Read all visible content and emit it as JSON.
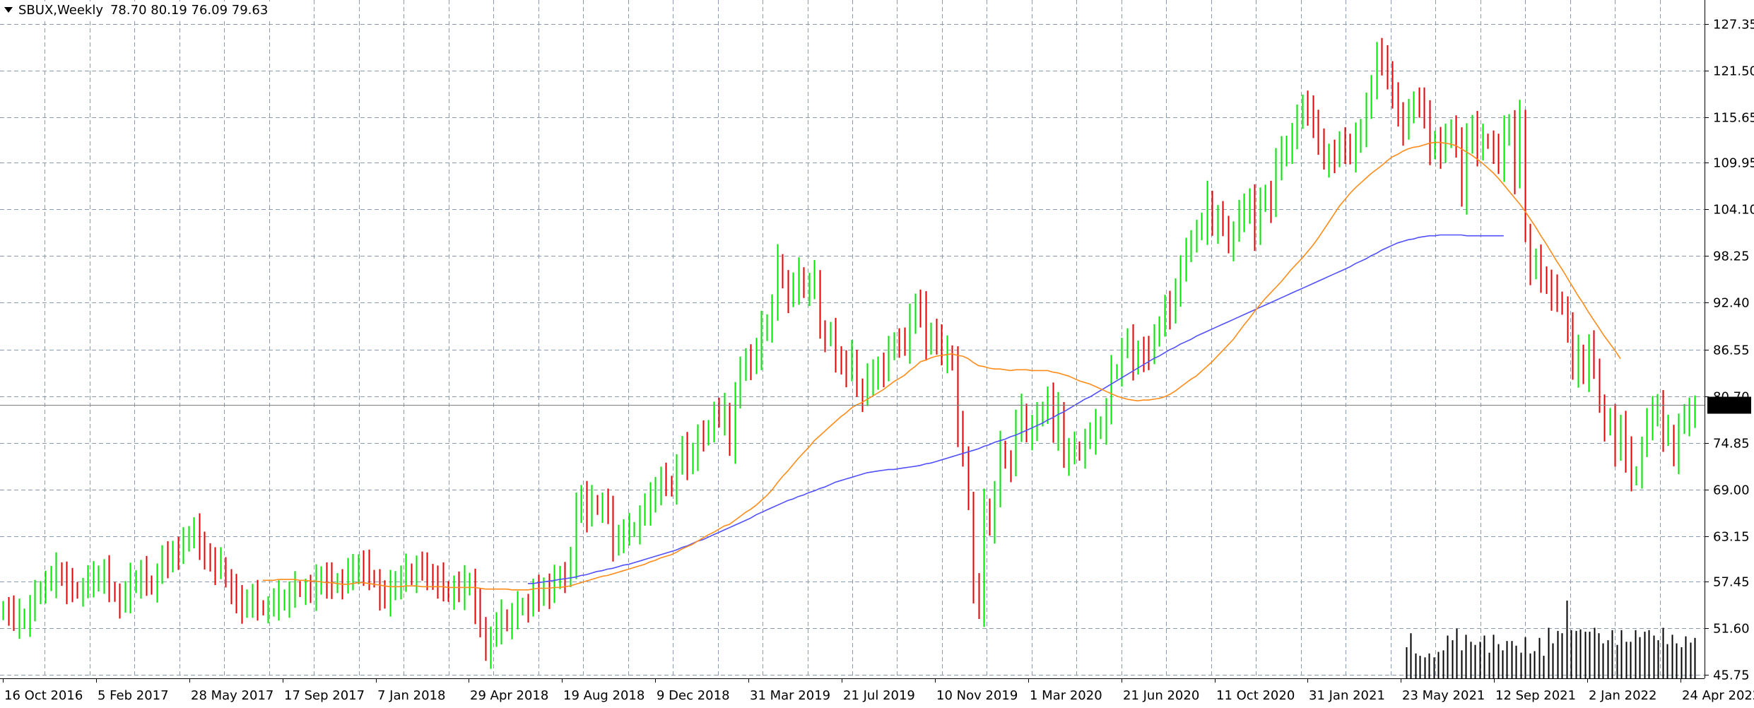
{
  "header": {
    "symbol": "SBUX,Weekly",
    "ohlc": "78.70 80.19 76.09 79.63"
  },
  "chart_data": {
    "type": "candlestick",
    "symbol": "SBUX",
    "timeframe": "Weekly",
    "ohlc_last": {
      "open": 78.7,
      "high": 80.19,
      "low": 76.09,
      "close": 79.63
    },
    "current_price_label": "79.63",
    "ylim": [
      45.75,
      127.35
    ],
    "y_ticks": [
      "127.35",
      "121.50",
      "115.65",
      "109.95",
      "104.10",
      "98.25",
      "92.40",
      "86.55",
      "80.70",
      "74.85",
      "69.00",
      "63.15",
      "57.45",
      "51.60",
      "45.75"
    ],
    "x_ticks": [
      "16 Oct 2016",
      "5 Feb 2017",
      "28 May 2017",
      "17 Sep 2017",
      "7 Jan 2018",
      "29 Apr 2018",
      "19 Aug 2018",
      "9 Dec 2018",
      "31 Mar 2019",
      "21 Jul 2019",
      "10 Nov 2019",
      "1 Mar 2020",
      "21 Jun 2020",
      "11 Oct 2020",
      "31 Jan 2021",
      "23 May 2021",
      "12 Sep 2021",
      "2 Jan 2022",
      "24 Apr 2022"
    ],
    "grid": true,
    "colors": {
      "up_bar": "#00e400",
      "down_bar": "#e40000",
      "fast_ma": "#ff8c1a",
      "slow_ma": "#5050ff",
      "grid": "#8a9ab0",
      "volume": "#000000"
    },
    "close_series": [
      54.1,
      53.8,
      52.4,
      52.9,
      52.9,
      54.1,
      55.5,
      56.6,
      57.4,
      57.5,
      58.7,
      58.3,
      57.0,
      56.5,
      56.2,
      56.5,
      57.6,
      57.6,
      58.3,
      58.6,
      56.5,
      55.8,
      54.7,
      55.6,
      57.4,
      57.7,
      58.5,
      57.3,
      56.7,
      58.3,
      60.1,
      60.0,
      61.4,
      61.3,
      62.1,
      63.5,
      64.1,
      61.3,
      61.1,
      60.1,
      59.4,
      59.6,
      57.6,
      56.5,
      54.6,
      54.3,
      55.3,
      55.5,
      54.2,
      54.1,
      54.2,
      54.7,
      55.2,
      55.3,
      55.8,
      56.6,
      56.4,
      56.4,
      55.9,
      57.2,
      58.2,
      57.7,
      56.9,
      57.6,
      57.1,
      58.5,
      58.5,
      59.7,
      59.3,
      58.0,
      57.6,
      55.7,
      55.2,
      56.5,
      57.6,
      57.8,
      58.8,
      57.9,
      59.3,
      58.7,
      58.5,
      57.8,
      57.7,
      56.6,
      55.8,
      56.8,
      56.0,
      57.1,
      57.4,
      54.5,
      52.1,
      48.4,
      50.4,
      51.7,
      52.8,
      52.6,
      53.1,
      54.1,
      54.5,
      54.2,
      55.9,
      55.8,
      56.8,
      56.4,
      57.4,
      58.5,
      57.9,
      59.9,
      66.2,
      68.4,
      66.0,
      67.4,
      66.7,
      67.2,
      65.8,
      62.1,
      63.4,
      63.6,
      63.9,
      64.0,
      65.6,
      66.6,
      67.5,
      69.4,
      70.2,
      69.8,
      69.0,
      72.0,
      73.8,
      72.3,
      73.7,
      75.5,
      75.4,
      76.8,
      78.6,
      77.9,
      78.7,
      74.6,
      80.8,
      83.5,
      85.8,
      84.6,
      86.1,
      89.0,
      89.8,
      91.8,
      97.6,
      95.1,
      93.0,
      94.3,
      95.7,
      94.4,
      94.5,
      95.6,
      88.8,
      88.1,
      88.1,
      85.8,
      84.8,
      84.2,
      85.6,
      81.5,
      80.6,
      82.9,
      82.9,
      84.5,
      84.2,
      86.1,
      87.8,
      87.4,
      86.9,
      89.9,
      92.4,
      91.7,
      86.8,
      89.0,
      87.8,
      85.7,
      85.9,
      85.3,
      76.7,
      73.5,
      67.3,
      56.6,
      53.9,
      66.7,
      64.6,
      68.4,
      74.2,
      72.5,
      71.8,
      77.1,
      78.6,
      76.3,
      76.7,
      77.8,
      79.1,
      80.5,
      76.0,
      78.8,
      73.1,
      73.8,
      74.1,
      73.5,
      75.2,
      75.5,
      76.7,
      77.0,
      78.8,
      83.7,
      83.8,
      86.6,
      87.3,
      84.8,
      86.5,
      86.1,
      85.6,
      88.8,
      89.3,
      91.5,
      91.2,
      94.3,
      96.7,
      98.4,
      100.6,
      101.4,
      101.8,
      105.3,
      102.2,
      103.0,
      102.4,
      99.5,
      101.2,
      103.4,
      103.7,
      105.6,
      101.3,
      104.7,
      106.3,
      104.3,
      109.9,
      110.9,
      112.2,
      113.3,
      115.1,
      117.6,
      116.5,
      114.2,
      113.1,
      110.5,
      110.7,
      110.3,
      113.0,
      111.7,
      110.9,
      112.6,
      114.3,
      117.1,
      118.8,
      124.2,
      122.8,
      120.3,
      118.9,
      115.9,
      114.5,
      115.8,
      118.0,
      117.5,
      115.4,
      111.8,
      112.8,
      111.6,
      112.7,
      114.5,
      112.5,
      105.6,
      112.5,
      114.8,
      111.9,
      112.7,
      112.6,
      111.7,
      109.7,
      113.5,
      114.9,
      108.4,
      115.7,
      100.9,
      96.5,
      97.3,
      95.8,
      94.9,
      93.8,
      92.9,
      91.8,
      89.3,
      83.9,
      86.0,
      83.6,
      86.8,
      84.5,
      79.5,
      76.9,
      77.3,
      74.0,
      77.2,
      73.5,
      70.4,
      71.0,
      74.2,
      77.3,
      78.3,
      79.8,
      76.1,
      76.2,
      72.8,
      77.1,
      77.8,
      78.1,
      79.63
    ],
    "fast_ma_series": [
      null,
      null,
      null,
      null,
      null,
      null,
      null,
      null,
      null,
      null,
      null,
      null,
      null,
      null,
      null,
      null,
      null,
      null,
      null,
      null,
      null,
      null,
      null,
      null,
      null,
      null,
      null,
      null,
      null,
      null,
      null,
      null,
      null,
      null,
      null,
      null,
      null,
      null,
      null,
      null,
      null,
      null,
      null,
      null,
      null,
      null,
      null,
      null,
      null,
      57.6,
      57.6,
      57.6,
      57.7,
      57.7,
      57.7,
      57.7,
      57.6,
      57.6,
      57.5,
      57.5,
      57.4,
      57.3,
      57.3,
      57.2,
      57.1,
      57.1,
      57.2,
      57.3,
      57.3,
      57.2,
      57.1,
      57.0,
      56.9,
      56.8,
      56.8,
      56.8,
      56.9,
      56.9,
      56.9,
      56.8,
      56.8,
      56.8,
      56.8,
      56.8,
      56.7,
      56.7,
      56.7,
      56.7,
      56.7,
      56.7,
      56.6,
      56.5,
      56.5,
      56.5,
      56.5,
      56.5,
      56.4,
      56.4,
      56.4,
      56.4,
      56.5,
      56.6,
      56.6,
      56.6,
      56.7,
      56.7,
      56.8,
      56.9,
      57.1,
      57.3,
      57.5,
      57.7,
      57.9,
      58.1,
      58.2,
      58.4,
      58.6,
      58.8,
      59.0,
      59.2,
      59.4,
      59.6,
      59.9,
      60.1,
      60.4,
      60.6,
      60.8,
      61.1,
      61.5,
      61.8,
      62.1,
      62.5,
      62.9,
      63.3,
      63.6,
      64.0,
      64.4,
      64.6,
      65.1,
      65.6,
      66.1,
      66.5,
      67.0,
      67.6,
      68.2,
      68.9,
      69.8,
      70.6,
      71.3,
      72.1,
      72.9,
      73.6,
      74.3,
      75.1,
      75.7,
      76.3,
      76.9,
      77.5,
      78.1,
      78.6,
      79.2,
      79.6,
      79.9,
      80.3,
      80.7,
      81.1,
      81.5,
      82.0,
      82.5,
      82.9,
      83.3,
      83.9,
      84.4,
      85.0,
      85.2,
      85.5,
      85.7,
      85.8,
      85.9,
      86.0,
      85.8,
      85.7,
      85.4,
      84.9,
      84.5,
      84.4,
      84.2,
      84.1,
      84.1,
      84.0,
      83.9,
      84.0,
      84.0,
      84.0,
      83.9,
      83.9,
      83.9,
      83.9,
      83.7,
      83.6,
      83.4,
      83.2,
      82.9,
      82.6,
      82.4,
      82.2,
      81.9,
      81.6,
      81.3,
      81.0,
      80.7,
      80.5,
      80.3,
      80.2,
      80.1,
      80.2,
      80.2,
      80.3,
      80.4,
      80.6,
      80.9,
      81.3,
      81.8,
      82.3,
      82.8,
      83.2,
      83.8,
      84.4,
      85.0,
      85.7,
      86.4,
      87.1,
      87.8,
      88.7,
      89.6,
      90.4,
      91.3,
      92.1,
      92.9,
      93.6,
      94.3,
      95.0,
      95.8,
      96.6,
      97.3,
      98.0,
      98.8,
      99.6,
      100.5,
      101.5,
      102.5,
      103.5,
      104.5,
      105.3,
      106.1,
      106.8,
      107.4,
      108.0,
      108.6,
      109.1,
      109.6,
      110.2,
      110.7,
      111.0,
      111.4,
      111.7,
      111.9,
      112.0,
      112.2,
      112.4,
      112.5,
      112.5,
      112.4,
      112.3,
      112.1,
      111.7,
      111.3,
      110.9,
      110.4,
      109.9,
      109.3,
      108.7,
      108.0,
      107.2,
      106.4,
      105.6,
      104.8,
      103.9,
      102.9,
      101.9,
      100.8,
      99.8,
      98.7,
      97.6,
      96.6,
      95.5,
      94.4,
      93.3,
      92.3,
      91.2,
      90.2,
      89.2,
      88.2,
      87.3,
      86.4,
      85.4
    ],
    "slow_ma_series": [
      null,
      null,
      null,
      null,
      null,
      null,
      null,
      null,
      null,
      null,
      null,
      null,
      null,
      null,
      null,
      null,
      null,
      null,
      null,
      null,
      null,
      null,
      null,
      null,
      null,
      null,
      null,
      null,
      null,
      null,
      null,
      null,
      null,
      null,
      null,
      null,
      null,
      null,
      null,
      null,
      null,
      null,
      null,
      null,
      null,
      null,
      null,
      null,
      null,
      null,
      null,
      null,
      null,
      null,
      null,
      null,
      null,
      null,
      null,
      null,
      null,
      null,
      null,
      null,
      null,
      null,
      null,
      null,
      null,
      null,
      null,
      null,
      null,
      null,
      null,
      null,
      null,
      null,
      null,
      null,
      null,
      null,
      null,
      null,
      null,
      null,
      null,
      null,
      null,
      null,
      null,
      null,
      null,
      null,
      null,
      null,
      null,
      null,
      null,
      57.2,
      57.2,
      57.3,
      57.4,
      57.5,
      57.6,
      57.7,
      57.8,
      57.9,
      58.0,
      58.2,
      58.3,
      58.5,
      58.7,
      58.8,
      59.0,
      59.1,
      59.3,
      59.5,
      59.6,
      59.8,
      60.0,
      60.2,
      60.4,
      60.6,
      60.8,
      61.0,
      61.2,
      61.4,
      61.7,
      61.9,
      62.2,
      62.5,
      62.7,
      63.0,
      63.3,
      63.6,
      63.9,
      64.2,
      64.5,
      64.8,
      65.1,
      65.4,
      65.8,
      66.1,
      66.4,
      66.7,
      67.0,
      67.3,
      67.6,
      67.8,
      68.1,
      68.3,
      68.6,
      68.8,
      69.1,
      69.3,
      69.6,
      69.9,
      70.1,
      70.3,
      70.5,
      70.7,
      70.9,
      71.1,
      71.2,
      71.3,
      71.4,
      71.5,
      71.5,
      71.6,
      71.7,
      71.8,
      71.9,
      72.0,
      72.2,
      72.3,
      72.5,
      72.7,
      72.9,
      73.1,
      73.3,
      73.5,
      73.7,
      73.9,
      74.1,
      74.4,
      74.6,
      74.9,
      75.1,
      75.3,
      75.6,
      75.8,
      76.1,
      76.4,
      76.7,
      77.0,
      77.3,
      77.7,
      78.0,
      78.4,
      78.7,
      79.1,
      79.5,
      79.9,
      80.3,
      80.6,
      81.0,
      81.4,
      81.8,
      82.2,
      82.6,
      83.0,
      83.4,
      83.8,
      84.2,
      84.6,
      85.0,
      85.4,
      85.7,
      86.1,
      86.5,
      86.8,
      87.2,
      87.5,
      87.8,
      88.2,
      88.5,
      88.8,
      89.1,
      89.4,
      89.7,
      90.0,
      90.3,
      90.6,
      90.9,
      91.2,
      91.5,
      91.8,
      92.1,
      92.4,
      92.7,
      93.0,
      93.3,
      93.6,
      93.9,
      94.2,
      94.5,
      94.8,
      95.1,
      95.4,
      95.7,
      96.0,
      96.3,
      96.6,
      96.9,
      97.3,
      97.6,
      97.9,
      98.3,
      98.6,
      99.0,
      99.3,
      99.6,
      99.9,
      100.1,
      100.3,
      100.4,
      100.6,
      100.7,
      100.8,
      100.8,
      100.9,
      100.9,
      100.9,
      100.9,
      100.9,
      100.8,
      100.8,
      100.8,
      100.8,
      100.8,
      100.8,
      100.8,
      100.8
    ],
    "volume_bars": [
      0.4,
      0.58,
      0.32,
      0.29,
      0.27,
      0.32,
      0.27,
      0.34,
      0.36,
      0.55,
      0.49,
      0.64,
      0.36,
      0.56,
      0.47,
      0.43,
      0.47,
      0.55,
      0.33,
      0.56,
      0.44,
      0.36,
      0.48,
      0.48,
      0.42,
      0.33,
      0.53,
      0.32,
      0.35,
      0.52,
      0.29,
      0.65,
      0.45,
      0.61,
      0.58,
      1.0,
      0.62,
      0.61,
      0.63,
      0.6,
      0.6,
      0.65,
      0.58,
      0.45,
      0.49,
      0.62,
      0.43,
      0.62,
      0.47,
      0.47,
      0.62,
      0.53,
      0.6,
      0.62,
      0.55,
      0.49,
      0.65,
      0.44,
      0.56,
      0.45,
      0.4,
      0.54,
      0.46,
      0.52
    ]
  }
}
